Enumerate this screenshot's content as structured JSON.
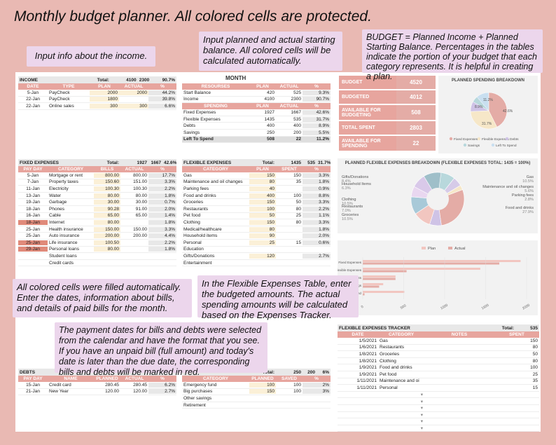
{
  "title": "Monthly budget planner. All colored cells are protected.",
  "notes": {
    "income": "Input info about the income.",
    "resources": "Input planned and actual starting balance. All colored cells will be calculated automatically.",
    "budget": "BUDGET = Planned Income + Planned Starting Balance. Percentages in the tables indicate the portion of your budget that each category represents. It is helpful in creating a plan.",
    "fixed": "All colored cells were filled automatically. Enter the dates, information about bills, and details of paid bills for the month.",
    "flexible": "In the Flexible Expenses Table, enter the budgeted amounts. The actual spending amounts will be calculated based on the Expenses Tracker.",
    "dates": "The payment dates for bills and debts were selected from the calendar and have the format that you see. If you have an unpaid bill (full amount) and today's date is later than the due date, the corresponding bills and debts will be marked in red."
  },
  "month_label": "MONTH",
  "income": {
    "name": "INCOME",
    "total_label": "Total:",
    "plan": "4100",
    "actual": "2300",
    "pct": "90.7%",
    "cols": [
      "DATE",
      "TYPE",
      "PLAN",
      "ACTUAL",
      "%"
    ],
    "rows": [
      [
        "5-Jan",
        "PayCheck",
        "2000",
        "2000",
        "44.2%"
      ],
      [
        "22-Jan",
        "PayCheck",
        "1800",
        "",
        "39.8%"
      ],
      [
        "22-Jan",
        "Online sales",
        "300",
        "300",
        "6.6%"
      ]
    ]
  },
  "resources": {
    "cols": [
      "RESOURSES",
      "PLAN",
      "ACTUAL",
      "%"
    ],
    "rows": [
      [
        "Start Balance",
        "420",
        "525",
        "9.3%"
      ],
      [
        "Income",
        "4100",
        "2300",
        "90.7%"
      ]
    ],
    "cols2": [
      "SPENDING",
      "PLAN",
      "ACTUAL",
      "%"
    ],
    "rows2": [
      [
        "Fixed Expenses",
        "1927",
        "1667",
        "42.6%"
      ],
      [
        "Flexible Expenses",
        "1435",
        "535",
        "31.7%"
      ],
      [
        "Debts",
        "400",
        "400",
        "8.9%"
      ],
      [
        "Savings",
        "250",
        "200",
        "5.5%"
      ]
    ],
    "left": [
      "Left To Spend",
      "508",
      "22",
      "11.2%"
    ]
  },
  "summary": [
    [
      "BUDGET",
      "4520"
    ],
    [
      "BUDGETED",
      "4012"
    ],
    [
      "AVAILABLE FOR BUDGETING",
      "508"
    ],
    [
      "TOTAL SPENT",
      "2803"
    ],
    [
      "AVAILABLE FOR SPENDING",
      "22"
    ]
  ],
  "planned_chart": {
    "title": "PLANNED SPENDING BREAKDOWN",
    "labels": [
      "42.6%",
      "31.7%",
      "8.9%",
      "11.2%"
    ],
    "legend": [
      "Fixed Expenses",
      "Flexible Expenses",
      "Debts",
      "Savings",
      "Left To Spend"
    ]
  },
  "fixed": {
    "name": "FIXED EXPENSES",
    "total_label": "Total:",
    "plan": "1927",
    "actual": "1667",
    "pct": "42.6%",
    "cols": [
      "PAY DAY",
      "CATEGORY",
      "BILLS",
      "ACTUAL",
      "%"
    ],
    "rows": [
      [
        "5-Jan",
        "Mortgage or rent",
        "800.00",
        "800.00",
        "17.7%"
      ],
      [
        "7-Jan",
        "Property taxes",
        "150.60",
        "151.00",
        "3.3%"
      ],
      [
        "11-Jan",
        "Electricity",
        "100.30",
        "100.30",
        "2.2%"
      ],
      [
        "13-Jan",
        "Water",
        "80.00",
        "80.00",
        "1.8%"
      ],
      [
        "19-Jan",
        "Garbage",
        "30.00",
        "30.00",
        "0.7%"
      ],
      [
        "18-Jan",
        "Phones",
        "90.28",
        "91.00",
        "2.0%"
      ],
      [
        "16-Jan",
        "Cable",
        "65.00",
        "65.00",
        "1.4%"
      ],
      [
        "18-Jan",
        "Internet",
        "80.00",
        "",
        "1.8%"
      ],
      [
        "25-Jan",
        "Health insurance",
        "150.00",
        "150.00",
        "3.3%"
      ],
      [
        "25-Jan",
        "Auto insurance",
        "200.00",
        "200.00",
        "4.4%"
      ],
      [
        "25-Jan",
        "Life insurance",
        "100.50",
        "",
        "2.2%"
      ],
      [
        "29-Jan",
        "Personal loans",
        "80.00",
        "",
        "1.8%"
      ],
      [
        "",
        "Student loans",
        "",
        "",
        ""
      ],
      [
        "",
        "Credit cards",
        "",
        "",
        ""
      ]
    ]
  },
  "flexible": {
    "name": "FLEXIBLE EXPENSES",
    "total_label": "Total:",
    "plan": "1435",
    "actual": "535",
    "pct": "31.7%",
    "cols": [
      "CATEGORY",
      "PLAN",
      "SPENT",
      "%"
    ],
    "rows": [
      [
        "Gas",
        "150",
        "150",
        "3.3%"
      ],
      [
        "Maintenance and oil changes",
        "80",
        "35",
        "1.8%"
      ],
      [
        "Parking fees",
        "40",
        "",
        "0.9%"
      ],
      [
        "Food and drinks",
        "400",
        "100",
        "8.8%"
      ],
      [
        "Groceries",
        "150",
        "50",
        "3.3%"
      ],
      [
        "Restaurants",
        "100",
        "80",
        "2.2%"
      ],
      [
        "Pet food",
        "50",
        "25",
        "1.1%"
      ],
      [
        "Clothing",
        "150",
        "80",
        "3.3%"
      ],
      [
        "Medical/healthcare",
        "80",
        "",
        "1.8%"
      ],
      [
        "Household items",
        "90",
        "",
        "2.0%"
      ],
      [
        "Personal",
        "25",
        "15",
        "0.6%"
      ],
      [
        "Education",
        "",
        "",
        ""
      ],
      [
        "Gifts/Donations",
        "120",
        "",
        "2.7%"
      ],
      [
        "Entertainment",
        "",
        "",
        ""
      ]
    ]
  },
  "flex_chart": {
    "title": "PLANNED FLEXIBLE EXPENSES BREAKDOWN (FLEXIBLE EXPENSES TOTAL: 1435 = 100%)",
    "left": [
      [
        "Gifts/Donations",
        "8.4%"
      ],
      [
        "Household Items",
        "6.3%"
      ],
      [
        "Clothing",
        "10.5%"
      ],
      [
        "Restaurants",
        "7.0%"
      ],
      [
        "Groceries",
        "10.5%"
      ]
    ],
    "right": [
      [
        "Gas",
        "10.5%"
      ],
      [
        "Maintenance and oil changes",
        "5.6%"
      ],
      [
        "Parking fees",
        "2.8%"
      ],
      [
        "Food and drinks",
        "27.9%"
      ]
    ]
  },
  "bar_chart": {
    "legend": [
      "Plan",
      "Actual"
    ],
    "categories": [
      "Fixed Expenses",
      "Flexible Expenses",
      "Debts",
      "Savings",
      "Left To Spend"
    ],
    "ticks": [
      "0",
      "500",
      "1000",
      "1500",
      "2000"
    ]
  },
  "tracker": {
    "name": "FLEXIBLE EXPENSES TRACKER",
    "total_label": "Total:",
    "total": "535",
    "cols": [
      "DATE",
      "CATEGORY",
      "NOTES",
      "SPENT"
    ],
    "rows": [
      [
        "1/5/2021",
        "Gas",
        "",
        "150"
      ],
      [
        "1/6/2021",
        "Restaurants",
        "",
        "80"
      ],
      [
        "1/8/2021",
        "Groceries",
        "",
        "50"
      ],
      [
        "1/8/2021",
        "Clothing",
        "",
        "80"
      ],
      [
        "1/9/2021",
        "Food and drinks",
        "",
        "100"
      ],
      [
        "1/9/2021",
        "Pet food",
        "",
        "25"
      ],
      [
        "1/11/2021",
        "Maintenance and oi",
        "",
        "35"
      ],
      [
        "1/11/2021",
        "Personal",
        "",
        "15"
      ]
    ]
  },
  "debts": {
    "name": "DEBTS",
    "cols": [
      "PAY DAY",
      "NAME",
      "PLANNED",
      "ACTUAL",
      "%"
    ],
    "rows": [
      [
        "15-Jan",
        "Credit card",
        "280.45",
        "280.45",
        "6.2%"
      ],
      [
        "21-Jan",
        "New Year",
        "120.00",
        "120.00",
        "2.7%"
      ]
    ]
  },
  "savings": {
    "total_label": "Total:",
    "plan": "250",
    "actual": "200",
    "pct": "6%",
    "cols": [
      "CATEGORY",
      "PLANNED",
      "SAVED",
      "%"
    ],
    "rows": [
      [
        "Emergency fund",
        "100",
        "100",
        "2%"
      ],
      [
        "Big purchases",
        "150",
        "100",
        "3%"
      ],
      [
        "Other savings",
        "",
        "",
        ""
      ],
      [
        "Retirement",
        "",
        "",
        ""
      ]
    ]
  },
  "colors": {
    "accent": "#e7a59e",
    "note": "#ecd6ec",
    "red": "#e08a7a"
  }
}
